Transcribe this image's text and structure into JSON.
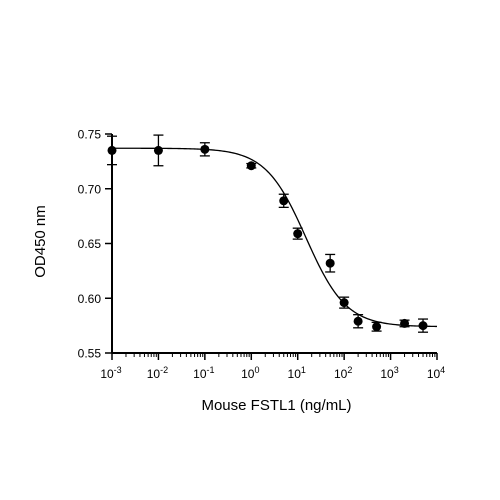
{
  "chart_data": {
    "type": "scatter",
    "title": "",
    "xlabel": "Mouse FSTL1 (ng/mL)",
    "ylabel": "OD450 nm",
    "x_scale": "log10",
    "xlim": [
      0.001,
      10000
    ],
    "ylim": [
      0.55,
      0.75
    ],
    "x_tick_exponents": [
      "-3",
      "-2",
      "-1",
      "0",
      "1",
      "2",
      "3",
      "4"
    ],
    "x_tick_base": "10",
    "y_ticks": [
      "0.55",
      "0.60",
      "0.65",
      "0.70",
      "0.75"
    ],
    "grid": false,
    "legend": "none",
    "points": [
      {
        "x": 0.001,
        "y": 0.735,
        "err": 0.013
      },
      {
        "x": 0.01,
        "y": 0.735,
        "err": 0.014
      },
      {
        "x": 0.1,
        "y": 0.736,
        "err": 0.006
      },
      {
        "x": 1,
        "y": 0.721,
        "err": 0.002
      },
      {
        "x": 5,
        "y": 0.689,
        "err": 0.006
      },
      {
        "x": 10,
        "y": 0.659,
        "err": 0.005
      },
      {
        "x": 50,
        "y": 0.632,
        "err": 0.008
      },
      {
        "x": 100,
        "y": 0.596,
        "err": 0.005
      },
      {
        "x": 200,
        "y": 0.579,
        "err": 0.006
      },
      {
        "x": 500,
        "y": 0.574,
        "err": 0.004
      },
      {
        "x": 2000,
        "y": 0.577,
        "err": 0.003
      },
      {
        "x": 5000,
        "y": 0.575,
        "err": 0.006
      }
    ],
    "fit": {
      "type": "4PL",
      "top": 0.737,
      "bottom": 0.574,
      "ec50": 15,
      "hill": 1.0
    }
  }
}
